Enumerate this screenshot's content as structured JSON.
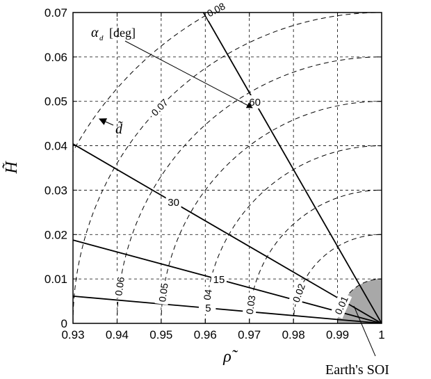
{
  "chart_data": {
    "type": "contour",
    "xlabel": "ρ̃",
    "ylabel": "H̃",
    "xlim": [
      0.93,
      1.0
    ],
    "ylim": [
      0,
      0.07
    ],
    "x_ticks": [
      0.93,
      0.94,
      0.95,
      0.96,
      0.97,
      0.98,
      0.99,
      1
    ],
    "x_tick_labels": [
      "0.93",
      "0.94",
      "0.95",
      "0.96",
      "0.97",
      "0.98",
      "0.99",
      "1"
    ],
    "y_ticks": [
      0,
      0.01,
      0.02,
      0.03,
      0.04,
      0.05,
      0.06,
      0.07
    ],
    "y_tick_labels": [
      "0",
      "0.01",
      "0.02",
      "0.03",
      "0.04",
      "0.05",
      "0.06",
      "0.07"
    ],
    "grid": true,
    "origin": [
      1.0,
      0.0
    ],
    "distance_contours": {
      "name": "d̃",
      "style": "dashed",
      "levels": [
        0.01,
        0.02,
        0.03,
        0.04,
        0.05,
        0.06,
        0.07,
        0.08
      ],
      "level_labels": [
        "0.01",
        "0.02",
        "0.03",
        "0.04",
        "0.05",
        "0.06",
        "0.07",
        "0.08"
      ]
    },
    "angle_rays": {
      "name": "α_d [deg]",
      "style": "solid",
      "levels": [
        5,
        15,
        30,
        60
      ],
      "level_labels": [
        "5",
        "15",
        "30",
        "60"
      ]
    },
    "soi_region": {
      "radius": 0.01,
      "label": "Earth's SOI"
    },
    "annotations": {
      "alpha_label_main": "α",
      "alpha_label_sub": "d",
      "alpha_label_unit": "[deg]",
      "d_arrow_label": "d̃",
      "soi_label": "Earth's SOI"
    }
  }
}
